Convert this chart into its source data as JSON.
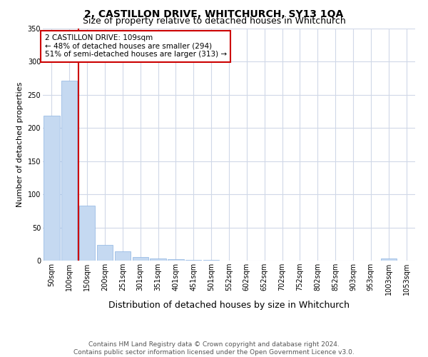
{
  "title": "2, CASTILLON DRIVE, WHITCHURCH, SY13 1QA",
  "subtitle": "Size of property relative to detached houses in Whitchurch",
  "xlabel": "Distribution of detached houses by size in Whitchurch",
  "ylabel": "Number of detached properties",
  "footer_line1": "Contains HM Land Registry data © Crown copyright and database right 2024.",
  "footer_line2": "Contains public sector information licensed under the Open Government Licence v3.0.",
  "categories": [
    "50sqm",
    "100sqm",
    "150sqm",
    "200sqm",
    "251sqm",
    "301sqm",
    "351sqm",
    "401sqm",
    "451sqm",
    "501sqm",
    "552sqm",
    "602sqm",
    "652sqm",
    "702sqm",
    "752sqm",
    "802sqm",
    "852sqm",
    "903sqm",
    "953sqm",
    "1003sqm",
    "1053sqm"
  ],
  "values": [
    219,
    271,
    83,
    24,
    14,
    5,
    3,
    2,
    1,
    1,
    0,
    0,
    0,
    0,
    0,
    0,
    0,
    0,
    0,
    3,
    0
  ],
  "bar_color": "#c5d9f1",
  "bar_edge_color": "#8db4e2",
  "ref_line_color": "#cc0000",
  "annotation_text": "2 CASTILLON DRIVE: 109sqm\n← 48% of detached houses are smaller (294)\n51% of semi-detached houses are larger (313) →",
  "annotation_box_color": "#ffffff",
  "annotation_box_edge_color": "#cc0000",
  "ylim": [
    0,
    350
  ],
  "yticks": [
    0,
    50,
    100,
    150,
    200,
    250,
    300,
    350
  ],
  "bg_color": "#ffffff",
  "grid_color": "#d0d8e8",
  "title_fontsize": 10,
  "subtitle_fontsize": 9,
  "xlabel_fontsize": 9,
  "ylabel_fontsize": 8,
  "tick_fontsize": 7,
  "footer_fontsize": 6.5,
  "annotation_fontsize": 7.5
}
